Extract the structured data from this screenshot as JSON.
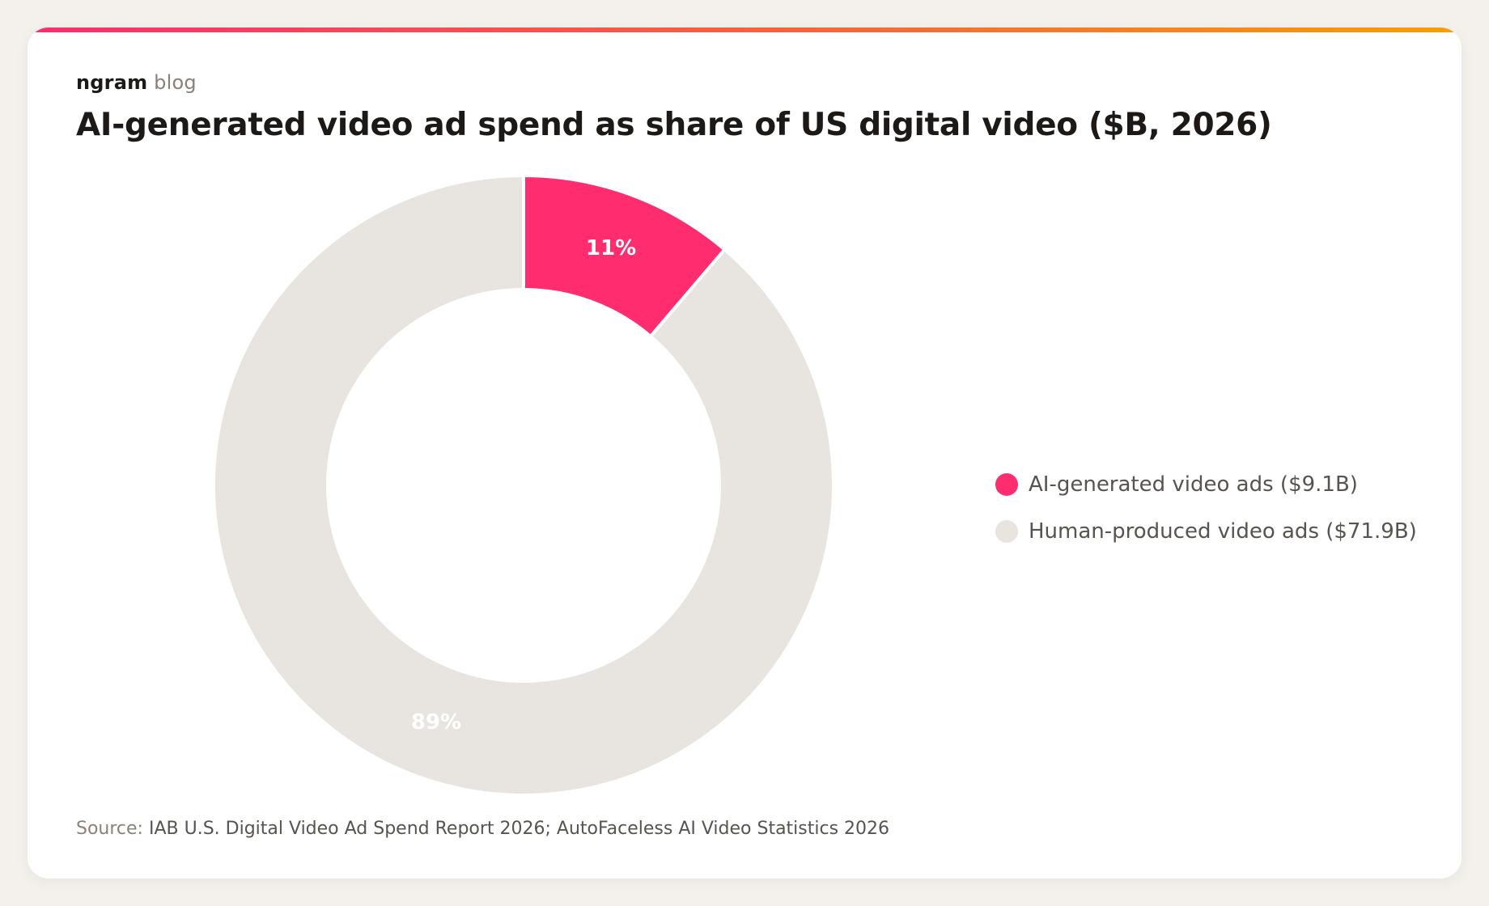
{
  "brand": {
    "name": "ngram",
    "sub": "blog"
  },
  "source": {
    "label": "Source:",
    "text": "IAB U.S. Digital Video Ad Spend Report 2026; AutoFaceless AI Video Statistics 2026"
  },
  "colors": {
    "ai": "#ff2d6f",
    "human": "#e8e4df",
    "accent_start": "#ff2d6f",
    "accent_end": "#f59e0b"
  },
  "chart_data": {
    "type": "pie",
    "variant": "donut",
    "title": "AI-generated video ad spend as share of US digital video ($B, 2026)",
    "unit": "$B",
    "categories": [
      "AI-generated video ads",
      "Human-produced video ads"
    ],
    "values": [
      9.1,
      71.9
    ],
    "data_labels": [
      "11%",
      "89%"
    ],
    "legend_labels": [
      "AI-generated video ads ($9.1B)",
      "Human-produced video ads ($71.9B)"
    ],
    "legend_position": "right",
    "start_angle": "12 o'clock, clockwise"
  }
}
